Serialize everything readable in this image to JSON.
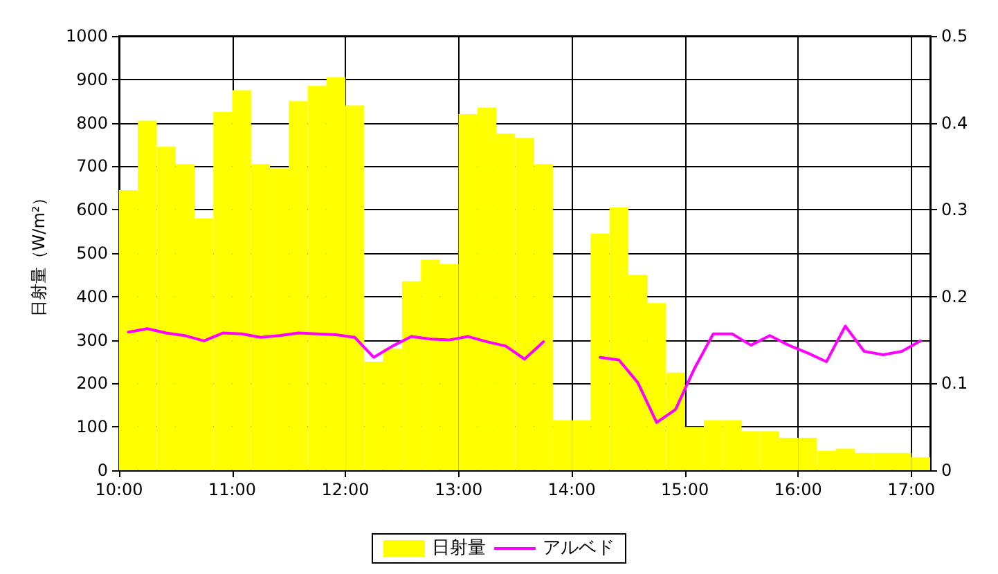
{
  "chart_data": {
    "type": "bar",
    "ylabel": "日射量（W/m²）",
    "x": [
      10.0833,
      10.25,
      10.4167,
      10.5833,
      10.75,
      10.9167,
      11.0833,
      11.25,
      11.4167,
      11.5833,
      11.75,
      11.9167,
      12.0833,
      12.25,
      12.4167,
      12.5833,
      12.75,
      12.9167,
      13.0833,
      13.25,
      13.4167,
      13.5833,
      13.75,
      13.9167,
      14.0833,
      14.25,
      14.4167,
      14.5833,
      14.75,
      14.9167,
      15.0833,
      15.25,
      15.4167,
      15.5833,
      15.75,
      15.9167,
      16.0833,
      16.25,
      16.4167,
      16.5833,
      16.75,
      16.9167,
      17.0833
    ],
    "series": [
      {
        "name": "日射量",
        "color": "#ffff00",
        "values": [
          645,
          805,
          745,
          705,
          580,
          825,
          875,
          705,
          695,
          850,
          885,
          905,
          840,
          250,
          280,
          435,
          485,
          475,
          820,
          835,
          775,
          765,
          705,
          115,
          115,
          545,
          605,
          450,
          385,
          225,
          100,
          115,
          115,
          90,
          90,
          75,
          75,
          45,
          50,
          40,
          40,
          40,
          30
        ]
      },
      {
        "name": "アルベド",
        "type": "line",
        "axis": "y2",
        "color": "#ff00ff",
        "values": [
          0.159,
          0.163,
          0.158,
          0.155,
          0.149,
          0.158,
          0.157,
          0.153,
          0.155,
          0.158,
          0.157,
          0.156,
          0.153,
          0.13,
          0.143,
          0.154,
          0.151,
          0.15,
          0.154,
          0.148,
          0.143,
          0.128,
          0.148,
          null,
          null,
          0.13,
          0.127,
          0.101,
          0.055,
          0.07,
          0.117,
          0.157,
          0.157,
          0.144,
          0.155,
          0.144,
          0.135,
          0.125,
          0.166,
          0.137,
          0.133,
          0.137,
          0.149
        ]
      }
    ],
    "xlim": [
      10,
      17.1667
    ],
    "xticks": [
      {
        "value": 10,
        "label": "10:00"
      },
      {
        "value": 11,
        "label": "11:00"
      },
      {
        "value": 12,
        "label": "12:00"
      },
      {
        "value": 13,
        "label": "13:00"
      },
      {
        "value": 14,
        "label": "14:00"
      },
      {
        "value": 15,
        "label": "15:00"
      },
      {
        "value": 16,
        "label": "16:00"
      },
      {
        "value": 17,
        "label": "17:00"
      }
    ],
    "ylim": [
      0,
      1000
    ],
    "yticks": [
      0,
      100,
      200,
      300,
      400,
      500,
      600,
      700,
      800,
      900,
      1000
    ],
    "y2lim": [
      0,
      0.5
    ],
    "y2ticks": [
      0,
      0.1,
      0.2,
      0.3,
      0.4,
      0.5
    ],
    "grid": true,
    "legend": "bottom",
    "marker": "none",
    "line_style": "solid"
  }
}
